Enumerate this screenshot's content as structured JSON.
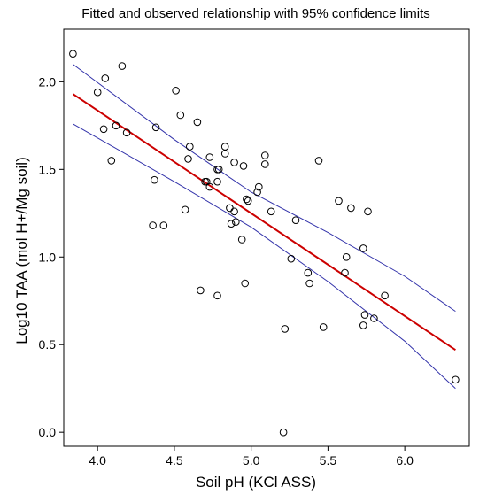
{
  "chart_data": {
    "type": "scatter",
    "title": "Fitted and observed relationship with 95% confidence limits",
    "xlabel": "Soil pH (KCl ASS)",
    "ylabel": "Log10 TAA (mol H+/Mg soil)",
    "xlim": [
      3.78,
      6.42
    ],
    "ylim": [
      -0.08,
      2.3
    ],
    "xticks": [
      "4.0",
      "4.5",
      "5.0",
      "5.5",
      "6.0"
    ],
    "yticks": [
      "0.0",
      "0.5",
      "1.0",
      "1.5",
      "2.0"
    ],
    "grid": false,
    "legend": "none",
    "colors": {
      "fit": "#cc0000",
      "ci": "#3333aa",
      "points": "#000000"
    },
    "points": [
      {
        "x": 3.84,
        "y": 2.16
      },
      {
        "x": 4.0,
        "y": 1.94
      },
      {
        "x": 4.05,
        "y": 2.02
      },
      {
        "x": 4.16,
        "y": 2.09
      },
      {
        "x": 4.04,
        "y": 1.73
      },
      {
        "x": 4.12,
        "y": 1.75
      },
      {
        "x": 4.19,
        "y": 1.71
      },
      {
        "x": 4.09,
        "y": 1.55
      },
      {
        "x": 4.38,
        "y": 1.74
      },
      {
        "x": 4.37,
        "y": 1.44
      },
      {
        "x": 4.36,
        "y": 1.18
      },
      {
        "x": 4.43,
        "y": 1.18
      },
      {
        "x": 4.51,
        "y": 1.95
      },
      {
        "x": 4.54,
        "y": 1.81
      },
      {
        "x": 4.65,
        "y": 1.77
      },
      {
        "x": 4.6,
        "y": 1.63
      },
      {
        "x": 4.59,
        "y": 1.56
      },
      {
        "x": 4.57,
        "y": 1.27
      },
      {
        "x": 4.7,
        "y": 1.43
      },
      {
        "x": 4.71,
        "y": 1.43
      },
      {
        "x": 4.73,
        "y": 1.57
      },
      {
        "x": 4.73,
        "y": 1.4
      },
      {
        "x": 4.78,
        "y": 1.5
      },
      {
        "x": 4.79,
        "y": 1.5
      },
      {
        "x": 4.78,
        "y": 1.43
      },
      {
        "x": 4.83,
        "y": 1.63
      },
      {
        "x": 4.83,
        "y": 1.59
      },
      {
        "x": 4.89,
        "y": 1.54
      },
      {
        "x": 4.86,
        "y": 1.28
      },
      {
        "x": 4.89,
        "y": 1.26
      },
      {
        "x": 4.87,
        "y": 1.19
      },
      {
        "x": 4.9,
        "y": 1.2
      },
      {
        "x": 4.95,
        "y": 1.52
      },
      {
        "x": 4.97,
        "y": 1.33
      },
      {
        "x": 4.98,
        "y": 1.32
      },
      {
        "x": 4.94,
        "y": 1.1
      },
      {
        "x": 4.67,
        "y": 0.81
      },
      {
        "x": 4.78,
        "y": 0.78
      },
      {
        "x": 4.96,
        "y": 0.85
      },
      {
        "x": 5.05,
        "y": 1.4
      },
      {
        "x": 5.04,
        "y": 1.37
      },
      {
        "x": 5.09,
        "y": 1.58
      },
      {
        "x": 5.09,
        "y": 1.53
      },
      {
        "x": 5.13,
        "y": 1.26
      },
      {
        "x": 5.29,
        "y": 1.21
      },
      {
        "x": 5.26,
        "y": 0.99
      },
      {
        "x": 5.37,
        "y": 0.91
      },
      {
        "x": 5.38,
        "y": 0.85
      },
      {
        "x": 5.44,
        "y": 1.55
      },
      {
        "x": 5.22,
        "y": 0.59
      },
      {
        "x": 5.47,
        "y": 0.6
      },
      {
        "x": 5.21,
        "y": 0.0
      },
      {
        "x": 5.57,
        "y": 1.32
      },
      {
        "x": 5.65,
        "y": 1.28
      },
      {
        "x": 5.76,
        "y": 1.26
      },
      {
        "x": 5.62,
        "y": 1.0
      },
      {
        "x": 5.61,
        "y": 0.91
      },
      {
        "x": 5.73,
        "y": 1.05
      },
      {
        "x": 5.74,
        "y": 0.67
      },
      {
        "x": 5.73,
        "y": 0.61
      },
      {
        "x": 5.8,
        "y": 0.65
      },
      {
        "x": 5.87,
        "y": 0.78
      },
      {
        "x": 6.33,
        "y": 0.3
      }
    ],
    "fit_line": {
      "x": [
        3.84,
        6.33
      ],
      "y": [
        1.93,
        0.47
      ]
    },
    "ci_upper": {
      "x": [
        3.84,
        4.5,
        5.0,
        5.5,
        6.0,
        6.33
      ],
      "y": [
        2.1,
        1.67,
        1.37,
        1.14,
        0.89,
        0.69
      ]
    },
    "ci_lower": {
      "x": [
        3.84,
        4.5,
        5.0,
        5.5,
        6.0,
        6.33
      ],
      "y": [
        1.76,
        1.43,
        1.17,
        0.86,
        0.52,
        0.25
      ]
    }
  }
}
